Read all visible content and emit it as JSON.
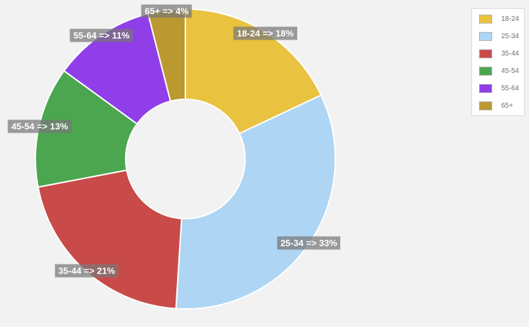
{
  "background_color": "#f2f2f2",
  "chart_data": {
    "type": "pie",
    "subtype": "donut",
    "title": "",
    "categories": [
      "18-24",
      "25-34",
      "35-44",
      "45-54",
      "55-64",
      "65+"
    ],
    "values": [
      18,
      33,
      21,
      13,
      11,
      4
    ],
    "unit": "%",
    "colors": [
      "#e9c23f",
      "#aed5f3",
      "#c84b49",
      "#4ba64f",
      "#8f3ee8",
      "#bb9931"
    ],
    "slice_labels": [
      "18-24 => 18%",
      "25-34 => 33%",
      "35-44 => 21%",
      "45-54 => 13%",
      "55-64 => 11%",
      "65+ => 4%"
    ],
    "slice_label_format": "{category} => {value}%",
    "slice_label_bg": "rgba(119,119,119,0.72)",
    "slice_label_text_color": "#ffffff",
    "slice_stroke_color": "#ffffff",
    "start_at_top": true,
    "clockwise": true,
    "legend_position": "top-right",
    "legend_entries": [
      "18-24",
      "25-34",
      "35-44",
      "45-54",
      "55-64",
      "65+"
    ]
  }
}
